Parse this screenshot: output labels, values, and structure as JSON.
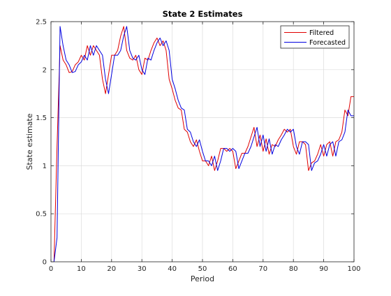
{
  "chart_data": {
    "type": "line",
    "title": "State 2 Estimates",
    "xlabel": "Period",
    "ylabel": "State estimate",
    "xlim": [
      0,
      100
    ],
    "ylim": [
      0,
      2.5
    ],
    "xticks": [
      0,
      10,
      20,
      30,
      40,
      50,
      60,
      70,
      80,
      90,
      100
    ],
    "yticks": [
      0,
      0.5,
      1,
      1.5,
      2,
      2.5
    ],
    "xtick_labels": [
      "0",
      "10",
      "20",
      "30",
      "40",
      "50",
      "60",
      "70",
      "80",
      "90",
      "100"
    ],
    "ytick_labels": [
      "0",
      "0.5",
      "1",
      "1.5",
      "2",
      "2.5"
    ],
    "grid": true,
    "legend_position": "top-right",
    "x": [
      1,
      2,
      3,
      4,
      5,
      6,
      7,
      8,
      9,
      10,
      11,
      12,
      13,
      14,
      15,
      16,
      17,
      18,
      19,
      20,
      21,
      22,
      23,
      24,
      25,
      26,
      27,
      28,
      29,
      30,
      31,
      32,
      33,
      34,
      35,
      36,
      37,
      38,
      39,
      40,
      41,
      42,
      43,
      44,
      45,
      46,
      47,
      48,
      49,
      50,
      51,
      52,
      53,
      54,
      55,
      56,
      57,
      58,
      59,
      60,
      61,
      62,
      63,
      64,
      65,
      66,
      67,
      68,
      69,
      70,
      71,
      72,
      73,
      74,
      75,
      76,
      77,
      78,
      79,
      80,
      81,
      82,
      83,
      84,
      85,
      86,
      87,
      88,
      89,
      90,
      91,
      92,
      93,
      94,
      95,
      96,
      97,
      98,
      99,
      100
    ],
    "series": [
      {
        "name": "Filtered",
        "color": "#e00000",
        "values": [
          0.0,
          1.2,
          2.25,
          2.1,
          2.05,
          1.97,
          1.98,
          2.05,
          2.08,
          2.15,
          2.1,
          2.25,
          2.15,
          2.25,
          2.2,
          2.15,
          1.9,
          1.75,
          1.95,
          2.15,
          2.15,
          2.2,
          2.35,
          2.45,
          2.2,
          2.12,
          2.1,
          2.15,
          2.0,
          1.95,
          2.12,
          2.1,
          2.2,
          2.28,
          2.33,
          2.25,
          2.3,
          2.2,
          1.9,
          1.8,
          1.68,
          1.6,
          1.58,
          1.38,
          1.35,
          1.25,
          1.2,
          1.27,
          1.15,
          1.05,
          1.05,
          1.0,
          1.1,
          0.95,
          1.05,
          1.18,
          1.18,
          1.15,
          1.18,
          1.15,
          0.97,
          1.05,
          1.13,
          1.13,
          1.2,
          1.3,
          1.4,
          1.2,
          1.32,
          1.15,
          1.28,
          1.12,
          1.22,
          1.2,
          1.27,
          1.32,
          1.38,
          1.35,
          1.38,
          1.2,
          1.12,
          1.25,
          1.25,
          1.22,
          0.95,
          1.03,
          1.05,
          1.12,
          1.22,
          1.1,
          1.22,
          1.25,
          1.1,
          1.25,
          1.27,
          1.35,
          1.58,
          1.52,
          1.72,
          1.72
        ]
      },
      {
        "name": "Forecasted",
        "color": "#0000e0",
        "values": [
          0.0,
          0.25,
          2.45,
          2.25,
          2.1,
          2.05,
          1.97,
          1.98,
          2.05,
          2.08,
          2.15,
          2.1,
          2.25,
          2.15,
          2.25,
          2.2,
          2.15,
          1.9,
          1.75,
          1.95,
          2.15,
          2.15,
          2.2,
          2.35,
          2.45,
          2.2,
          2.12,
          2.1,
          2.15,
          2.0,
          1.95,
          2.12,
          2.1,
          2.2,
          2.28,
          2.33,
          2.25,
          2.3,
          2.2,
          1.9,
          1.8,
          1.68,
          1.6,
          1.58,
          1.38,
          1.35,
          1.25,
          1.2,
          1.27,
          1.15,
          1.05,
          1.05,
          1.0,
          1.1,
          0.95,
          1.05,
          1.18,
          1.18,
          1.15,
          1.18,
          1.15,
          0.97,
          1.05,
          1.13,
          1.13,
          1.2,
          1.3,
          1.4,
          1.2,
          1.32,
          1.15,
          1.28,
          1.12,
          1.22,
          1.2,
          1.27,
          1.32,
          1.38,
          1.35,
          1.38,
          1.2,
          1.12,
          1.25,
          1.25,
          1.22,
          0.95,
          1.03,
          1.05,
          1.12,
          1.22,
          1.1,
          1.22,
          1.25,
          1.1,
          1.25,
          1.27,
          1.35,
          1.58,
          1.52,
          1.52
        ]
      }
    ]
  }
}
